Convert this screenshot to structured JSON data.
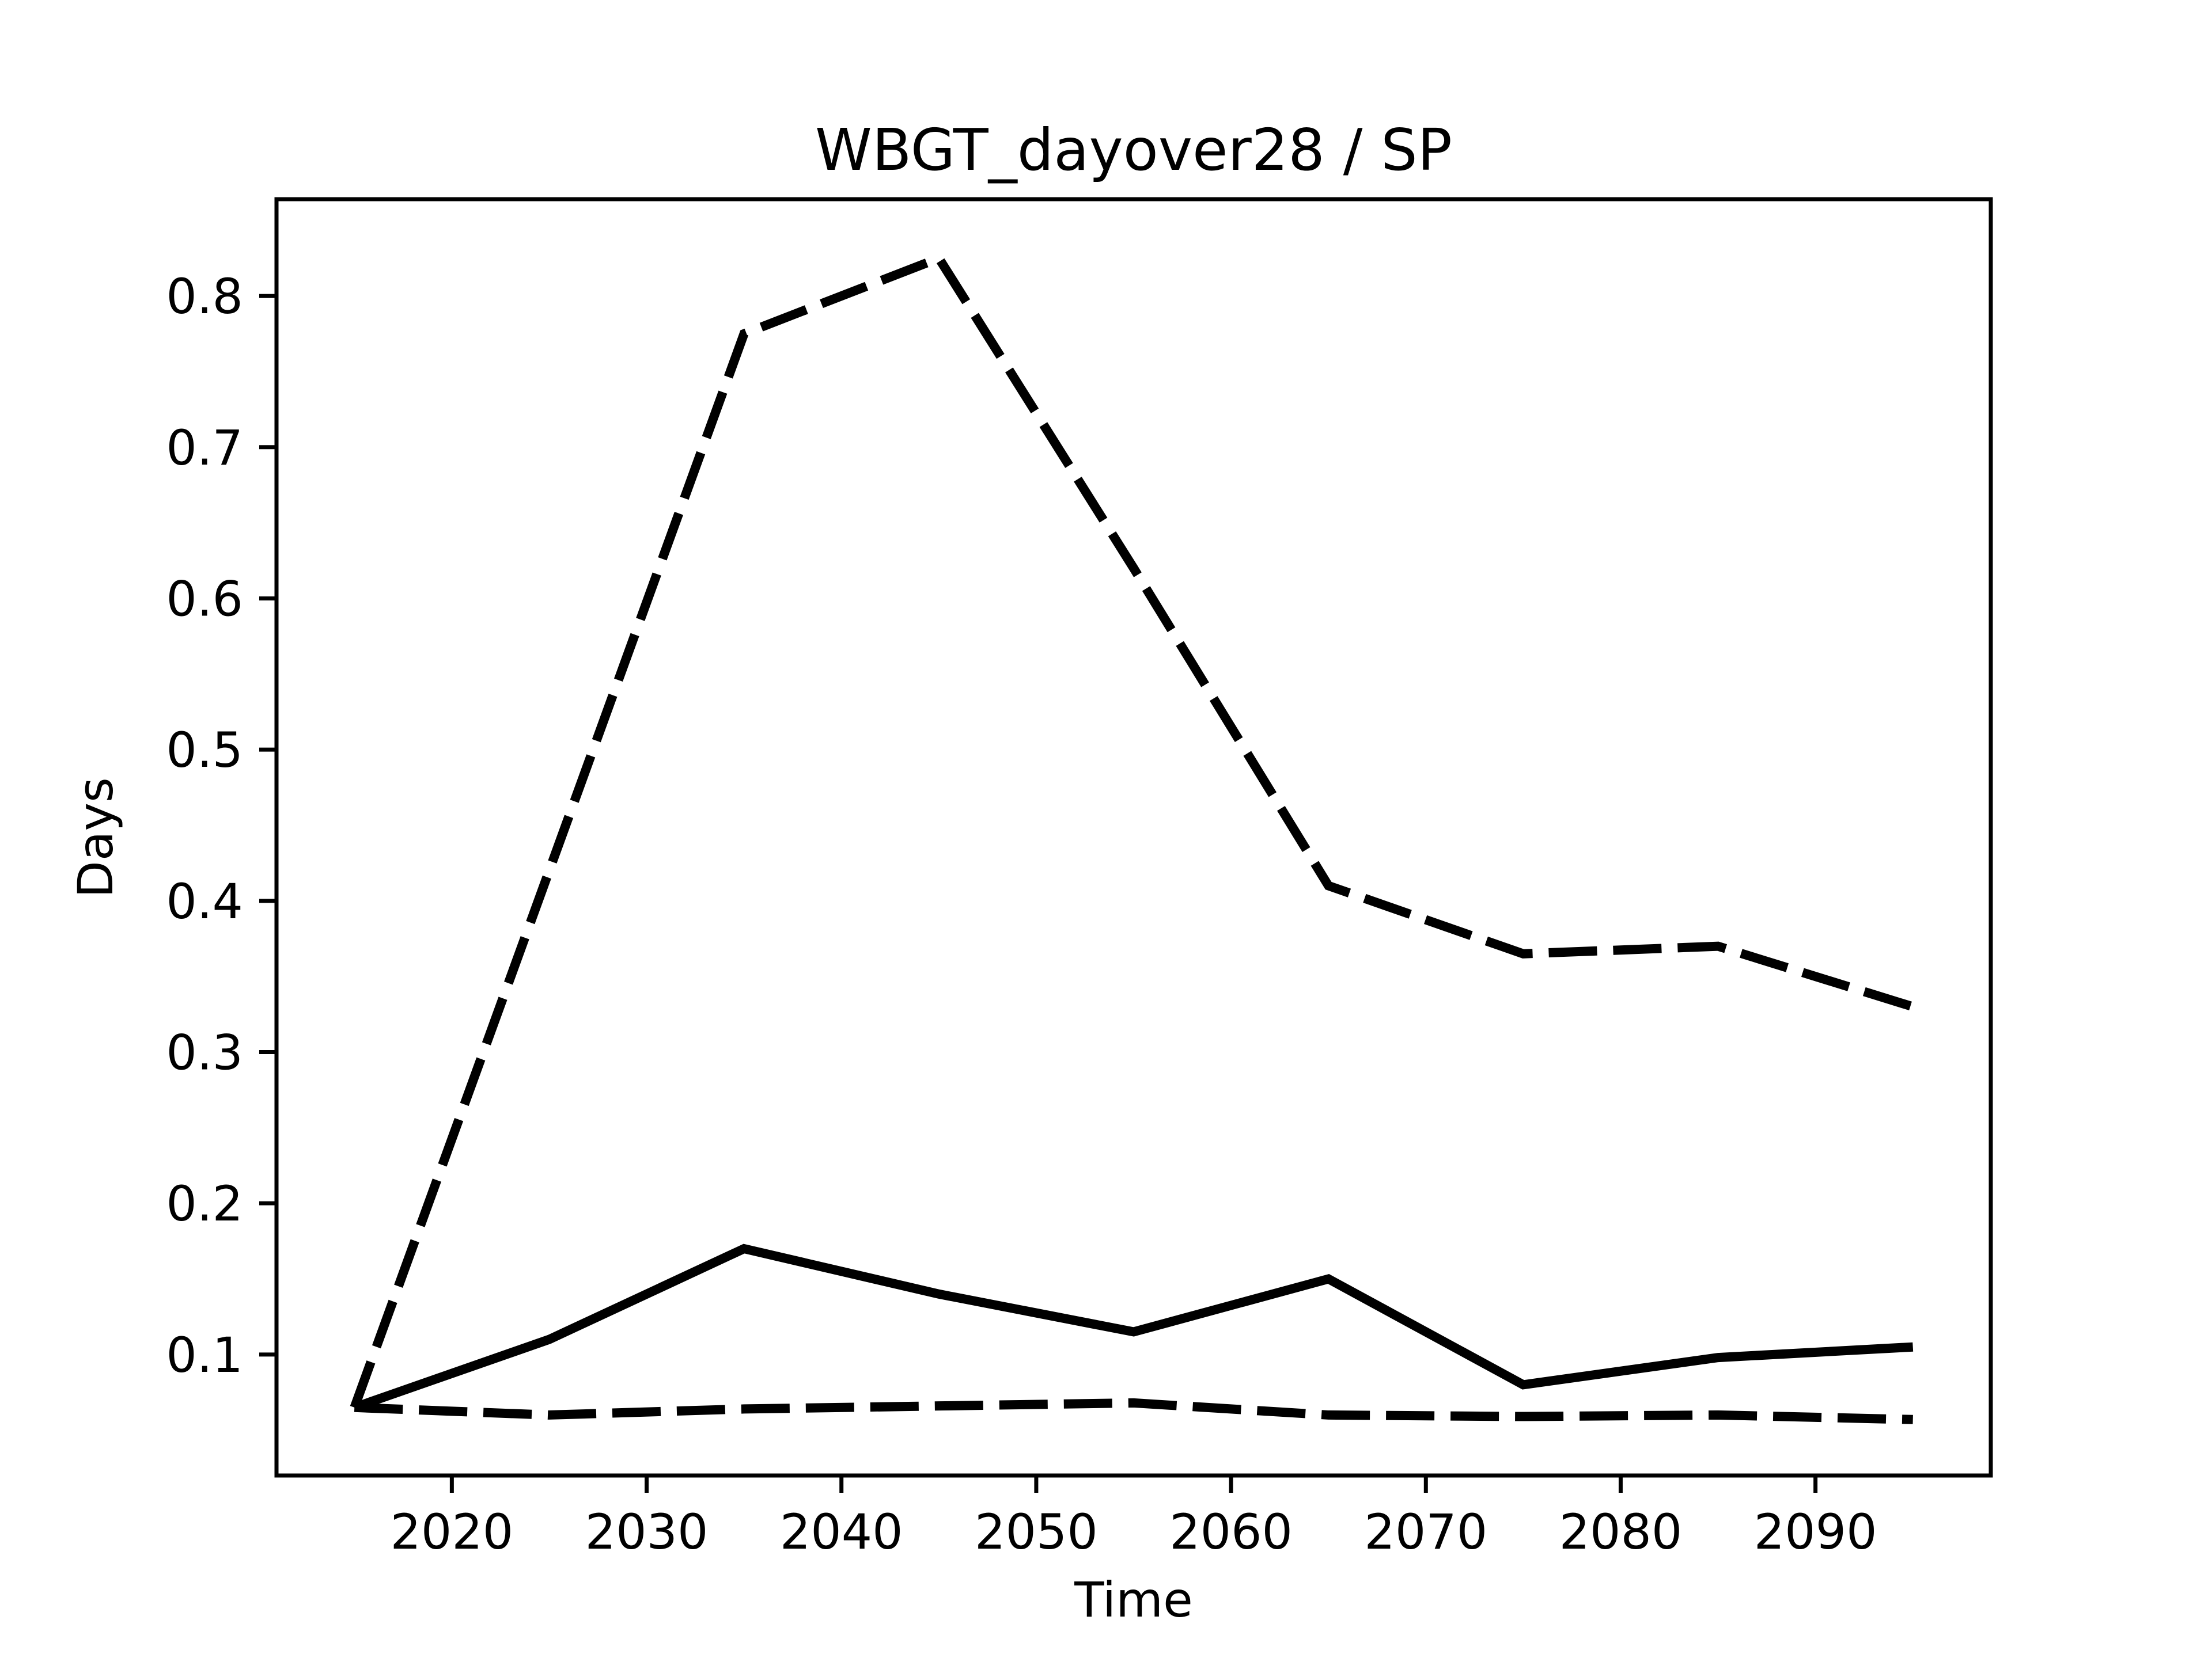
{
  "chart_data": {
    "type": "line",
    "title": "WBGT_dayover28 / SP",
    "xlabel": "Time",
    "ylabel": "Days",
    "x": [
      2015,
      2025,
      2035,
      2045,
      2055,
      2065,
      2075,
      2085,
      2095
    ],
    "series": [
      {
        "name": "upper-dashed",
        "style": "dashed",
        "values": [
          0.065,
          0.42,
          0.775,
          0.825,
          0.62,
          0.41,
          0.365,
          0.37,
          0.33
        ]
      },
      {
        "name": "solid-central",
        "style": "solid",
        "values": [
          0.065,
          0.11,
          0.17,
          0.14,
          0.115,
          0.15,
          0.08,
          0.098,
          0.105
        ]
      },
      {
        "name": "lower-dashed",
        "style": "dashed",
        "values": [
          0.065,
          0.06,
          0.064,
          0.066,
          0.068,
          0.06,
          0.059,
          0.06,
          0.057
        ]
      }
    ],
    "xlim": [
      2011,
      2099
    ],
    "ylim": [
      0.02,
      0.864
    ],
    "xticks": [
      2020,
      2030,
      2040,
      2050,
      2060,
      2070,
      2080,
      2090
    ],
    "yticks": [
      0.1,
      0.2,
      0.3,
      0.4,
      0.5,
      0.6,
      0.7,
      0.8
    ],
    "grid": false,
    "legend": "none",
    "line_color": "#000000",
    "background": "#ffffff"
  }
}
